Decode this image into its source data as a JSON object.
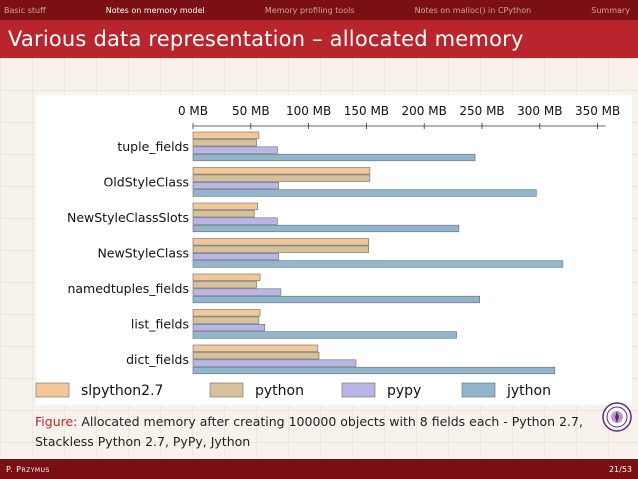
{
  "nav": {
    "items": [
      {
        "label": "Basic stuff",
        "active": false
      },
      {
        "label": "Notes on memory model",
        "active": true
      },
      {
        "label": "Memory profiling tools",
        "active": false
      },
      {
        "label": "Notes on malloc() in CPython",
        "active": false
      },
      {
        "label": "Summary",
        "active": false
      }
    ]
  },
  "slide": {
    "title": "Various data representation – allocated memory"
  },
  "caption": {
    "label": "Figure:",
    "text": "Allocated memory after creating 100000 objects with 8 fields each - Python 2.7, Stackless Python 2.7, PyPy, Jython"
  },
  "footer": {
    "author": "P. Przymus",
    "page": "21/53"
  },
  "colors": {
    "nav_bg": "#7a0f14",
    "title_bg": "#b8252c",
    "caption_label": "#c0262d"
  },
  "chart_data": {
    "type": "bar",
    "orientation": "horizontal",
    "categories": [
      "tuple_fields",
      "OldStyleClass",
      "NewStyleClassSlots",
      "NewStyleClass",
      "namedtuples_fields",
      "list_fields",
      "dict_fields"
    ],
    "series": [
      {
        "name": "slpython2.7",
        "color": "#f2c89b",
        "values": [
          57,
          153,
          56,
          152,
          58,
          58,
          108
        ]
      },
      {
        "name": "python",
        "color": "#d5c29b",
        "values": [
          55,
          153,
          53,
          152,
          55,
          57,
          109
        ]
      },
      {
        "name": "pypy",
        "color": "#b9b5e6",
        "values": [
          73,
          74,
          73,
          74,
          76,
          62,
          141
        ]
      },
      {
        "name": "jython",
        "color": "#8fb6cd",
        "values": [
          244,
          297,
          230,
          320,
          248,
          228,
          313
        ]
      }
    ],
    "x_ticks": [
      "0 MB",
      "50 MB",
      "100 MB",
      "150 MB",
      "200 MB",
      "250 MB",
      "300 MB",
      "350 MB"
    ],
    "xlim": [
      0,
      350
    ],
    "x_axis_position": "top",
    "grid": false,
    "legend_position": "bottom"
  }
}
